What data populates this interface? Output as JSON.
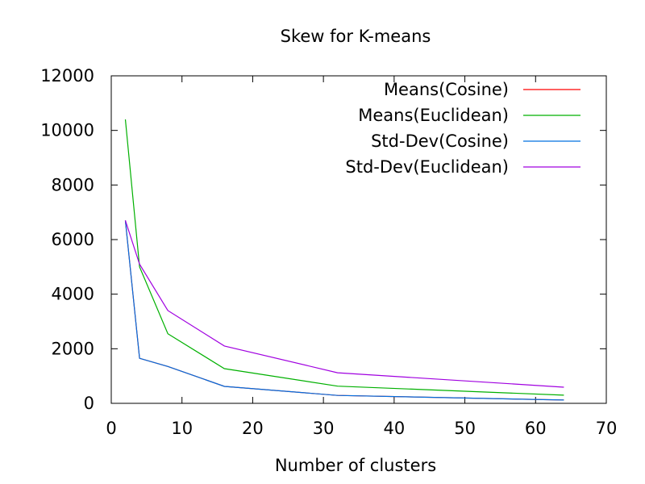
{
  "chart_data": {
    "type": "line",
    "title": "Skew for K-means",
    "xlabel": "Number of clusters",
    "ylabel": "",
    "xlim": [
      0,
      70
    ],
    "ylim": [
      0,
      12000
    ],
    "xticks": [
      0,
      10,
      20,
      30,
      40,
      50,
      60,
      70
    ],
    "yticks": [
      0,
      2000,
      4000,
      6000,
      8000,
      10000,
      12000
    ],
    "grid": false,
    "legend_position": "top-right",
    "series": [
      {
        "name": "Means(Cosine)",
        "color": "#ff0000",
        "x": [
          2,
          4,
          8,
          16,
          32,
          64
        ],
        "y": [
          6700,
          1650,
          1350,
          620,
          290,
          120
        ]
      },
      {
        "name": "Means(Euclidean)",
        "color": "#00b000",
        "x": [
          2,
          4,
          8,
          16,
          32,
          64
        ],
        "y": [
          10400,
          5000,
          2550,
          1270,
          630,
          300
        ]
      },
      {
        "name": "Std-Dev(Cosine)",
        "color": "#0070e0",
        "x": [
          2,
          4,
          8,
          16,
          32,
          64
        ],
        "y": [
          6700,
          1650,
          1350,
          620,
          290,
          120
        ]
      },
      {
        "name": "Std-Dev(Euclidean)",
        "color": "#a000e0",
        "x": [
          2,
          4,
          8,
          16,
          32,
          64
        ],
        "y": [
          6700,
          5100,
          3400,
          2100,
          1120,
          590
        ]
      }
    ]
  }
}
